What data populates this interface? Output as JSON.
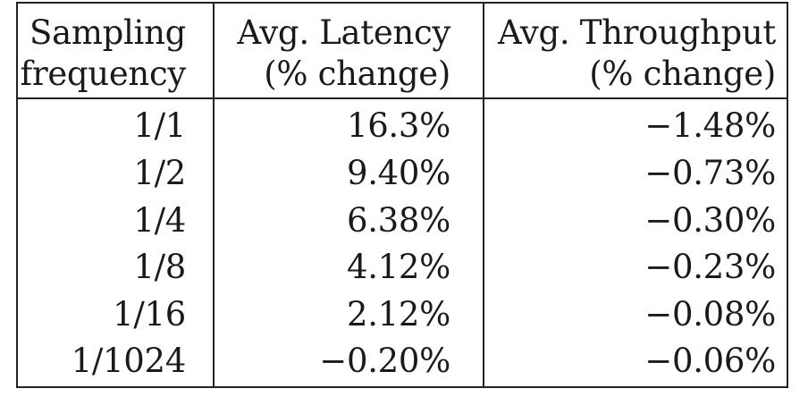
{
  "table": {
    "headers": [
      {
        "line1": "Sampling",
        "line2": "frequency"
      },
      {
        "line1": "Avg. Latency",
        "line2": "(% change)"
      },
      {
        "line1": "Avg. Throughput",
        "line2": "(% change)"
      }
    ],
    "rows": [
      {
        "frequency": "1/1",
        "latency": "16.3%",
        "throughput": "−1.48%"
      },
      {
        "frequency": "1/2",
        "latency": "9.40%",
        "throughput": "−0.73%"
      },
      {
        "frequency": "1/4",
        "latency": "6.38%",
        "throughput": "−0.30%"
      },
      {
        "frequency": "1/8",
        "latency": "4.12%",
        "throughput": "−0.23%"
      },
      {
        "frequency": "1/16",
        "latency": "2.12%",
        "throughput": "−0.08%"
      },
      {
        "frequency": "1/1024",
        "latency": "−0.20%",
        "throughput": "−0.06%"
      }
    ]
  }
}
